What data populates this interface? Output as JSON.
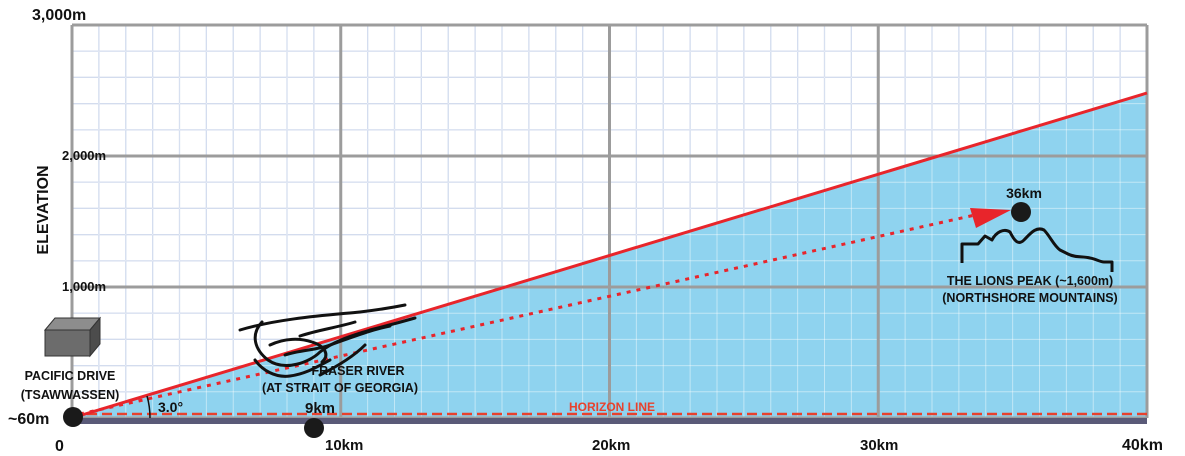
{
  "diagram": {
    "y_axis_label": "ELEVATION",
    "y_ticks": [
      "1,000m",
      "2,000m",
      "3,000m"
    ],
    "x_ticks": [
      "0",
      "10km",
      "20km",
      "30km",
      "40km"
    ],
    "observer": {
      "name": "PACIFIC DRIVE",
      "area": "(TSAWWASSEN)",
      "elevation": "~60m",
      "angle": "3.0°"
    },
    "waypoint": {
      "distance": "9km",
      "name": "FRASER RIVER",
      "sub": "(AT STRAIT OF GEORGIA)"
    },
    "target": {
      "distance": "36km",
      "name": "THE LIONS PEAK (~1,600m)",
      "sub": "(NORTHSHORE MOUNTAINS)"
    },
    "horizon_label": "HORIZON LINE",
    "colors": {
      "sight_line": "#e8252b",
      "sky_fill": "#8fd3ef",
      "horizon": "#e8412c",
      "ground": "#5a5a78",
      "grid_minor": "#b7c6e4",
      "grid_major": "#9c9c9c"
    }
  }
}
